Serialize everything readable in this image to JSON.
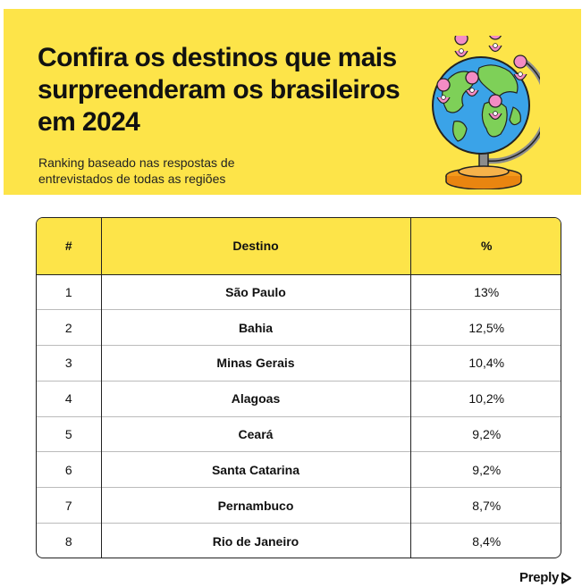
{
  "header": {
    "title": "Confira os destinos que mais surpreenderam os brasileiros em 2024",
    "subtitle": "Ranking baseado nas respostas de entrevistados de todas as regiões",
    "illustration": "globe-with-map-pins-icon",
    "background_color": "#fde449"
  },
  "table": {
    "headers": [
      "#",
      "Destino",
      "%"
    ],
    "rows": [
      {
        "rank": "1",
        "destino": "São Paulo",
        "pct": "13%"
      },
      {
        "rank": "2",
        "destino": "Bahia",
        "pct": "12,5%"
      },
      {
        "rank": "3",
        "destino": "Minas Gerais",
        "pct": "10,4%"
      },
      {
        "rank": "4",
        "destino": "Alagoas",
        "pct": "10,2%"
      },
      {
        "rank": "5",
        "destino": "Ceará",
        "pct": "9,2%"
      },
      {
        "rank": "6",
        "destino": "Santa Catarina",
        "pct": "9,2%"
      },
      {
        "rank": "7",
        "destino": "Pernambuco",
        "pct": "8,7%"
      },
      {
        "rank": "8",
        "destino": "Rio de Janeiro",
        "pct": "8,4%"
      }
    ]
  },
  "footer": {
    "brand": "Preply"
  }
}
